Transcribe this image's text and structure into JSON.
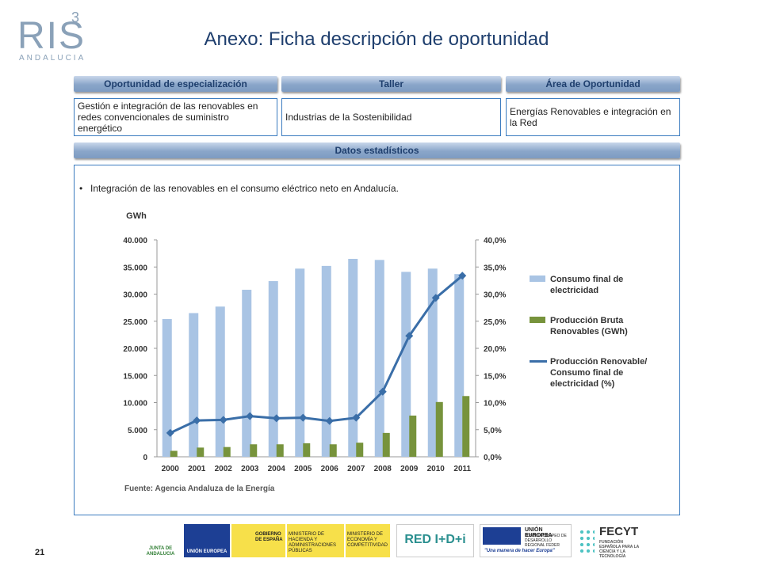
{
  "logo": {
    "text": "RIS",
    "superscript": "3",
    "subtitle": "ANDALUCIA"
  },
  "header": {
    "title": "Anexo: Ficha descripción de oportunidad"
  },
  "fields": [
    {
      "label": "Oportunidad de especialización",
      "value": "Gestión e integración de las renovables en redes convencionales de suministro energético"
    },
    {
      "label": "Taller",
      "value": "Industrias de la Sostenibilidad"
    },
    {
      "label": "Área de Oportunidad",
      "value": "Energías Renovables e integración en la Red"
    }
  ],
  "section": {
    "title": "Datos estadísticos",
    "bullet": "Integración de las renovables en el consumo eléctrico neto en Andalucía."
  },
  "chart_data": {
    "type": "bar",
    "y_label": "GWh",
    "source": "Fuente: Agencia Andaluza de la  Energía",
    "categories": [
      "2000",
      "2001",
      "2002",
      "2003",
      "2004",
      "2005",
      "2006",
      "2007",
      "2008",
      "2009",
      "2010",
      "2011"
    ],
    "series": [
      {
        "name": "Consumo final de electricidad",
        "mark": "bar",
        "color": "#a9c4e4",
        "values": [
          25400,
          26500,
          27700,
          30800,
          32400,
          34700,
          35200,
          36500,
          36300,
          34100,
          34700,
          33700
        ]
      },
      {
        "name": "Producción Bruta Renovables (GWh)",
        "mark": "bar",
        "color": "#77933c",
        "values": [
          1100,
          1700,
          1800,
          2300,
          2300,
          2500,
          2300,
          2600,
          4400,
          7600,
          10100,
          11200
        ]
      },
      {
        "name": "Producción Renovable/ Consumo final de electricidad (%)",
        "mark": "line",
        "axis": "y2",
        "color": "#3a6ea8",
        "values": [
          4.4,
          6.7,
          6.8,
          7.5,
          7.1,
          7.2,
          6.6,
          7.2,
          12.0,
          22.3,
          29.3,
          33.4
        ]
      }
    ],
    "ylim": [
      0,
      40000
    ],
    "yticks": [
      0,
      {
        "value": 5000,
        "label": "5.000"
      },
      {
        "value": 10000,
        "label": "10.000"
      },
      {
        "value": 15000,
        "label": "15.000"
      },
      {
        "value": 20000,
        "label": "20.000"
      },
      {
        "value": 25000,
        "label": "25.000"
      },
      {
        "value": 30000,
        "label": "30.000"
      },
      {
        "value": 35000,
        "label": "35.000"
      },
      {
        "value": 40000,
        "label": "40.000"
      }
    ],
    "y2lim": [
      0,
      40
    ],
    "y2ticks": [
      {
        "value": 0,
        "label": "0,0%"
      },
      {
        "value": 5,
        "label": "5,0%"
      },
      {
        "value": 10,
        "label": "10,0%"
      },
      {
        "value": 15,
        "label": "15,0%"
      },
      {
        "value": 20,
        "label": "20,0%"
      },
      {
        "value": 25,
        "label": "25,0%"
      },
      {
        "value": 30,
        "label": "30,0%"
      },
      {
        "value": 35,
        "label": "35,0%"
      },
      {
        "value": 40,
        "label": "40,0%"
      }
    ],
    "grid": false
  },
  "footer": {
    "page": "21",
    "logos": [
      "JUNTA DE ANDALUCIA",
      "UNIÓN EUROPEA",
      "GOBIERNO DE ESPAÑA",
      "MINISTERIO DE HACIENDA Y ADMINISTRACIONES PÚBLICAS",
      "MINISTERIO DE ECONOMÍA Y COMPETITIVIDAD",
      "RED I+D+i",
      "UNIÓN EUROPEA",
      "FONDO EUROPEO DE DESARROLLO REGIONAL FEDER",
      "\"Una manera de hacer Europa\"",
      "FECYT",
      "FUNDACIÓN ESPAÑOLA PARA LA CIENCIA Y LA TECNOLOGÍA"
    ]
  }
}
